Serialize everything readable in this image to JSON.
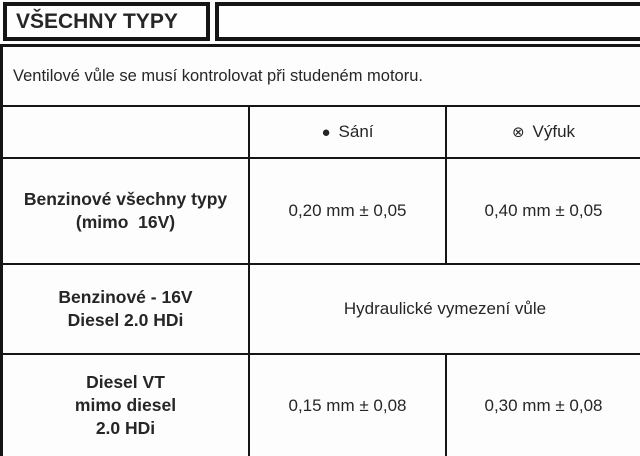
{
  "page": {
    "title": "VŠECHNY TYPY",
    "intro": "Ventilové vůle se musí kontrolovat při studeném motoru."
  },
  "table": {
    "header": {
      "intake": {
        "icon_glyph": "●",
        "label": "Sání"
      },
      "exhaust": {
        "icon_glyph": "⊗",
        "label": "Výfuk"
      }
    },
    "rows": [
      {
        "label_line1": "Benzinové všechny typy",
        "label_line2": "(mimo  16V)",
        "intake": "0,20 mm ± 0,05",
        "exhaust": "0,40 mm ± 0,05"
      },
      {
        "label_line1": "Benzinové - 16V",
        "label_line2": "Diesel 2.0 HDi",
        "merged_value": "Hydraulické vymezení vůle"
      },
      {
        "label_line1": "Diesel VT",
        "label_line2": "mimo diesel",
        "label_line3": "2.0 HDi",
        "intake": "0,15 mm ± 0,08",
        "exhaust": "0,30 mm ± 0,08"
      }
    ]
  },
  "colors": {
    "border": "#151515",
    "text": "#262626",
    "background": "#fdfdfd"
  }
}
